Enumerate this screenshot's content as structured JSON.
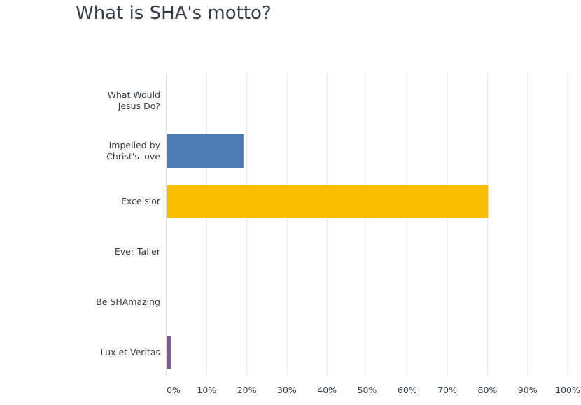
{
  "chart_data": {
    "type": "bar",
    "orientation": "horizontal",
    "title": "What is SHA's motto?",
    "categories": [
      [
        "What Would",
        "Jesus Do?"
      ],
      [
        "Impelled by",
        "Christ's love"
      ],
      [
        "Excelsior"
      ],
      [
        "Ever Taller"
      ],
      [
        "Be SHAmazing"
      ],
      [
        "Lux et Veritas"
      ]
    ],
    "values": [
      0,
      19,
      80,
      0,
      0,
      1
    ],
    "colors": [
      "#2dccd3",
      "#507cb6",
      "#f9be00",
      "#6bc8cd",
      "#9ec55e",
      "#7d5b9b"
    ],
    "xlim": [
      0,
      100
    ],
    "xticks": [
      "0%",
      "10%",
      "20%",
      "30%",
      "40%",
      "50%",
      "60%",
      "70%",
      "80%",
      "90%",
      "100%"
    ],
    "grid": true,
    "legend": "none"
  }
}
